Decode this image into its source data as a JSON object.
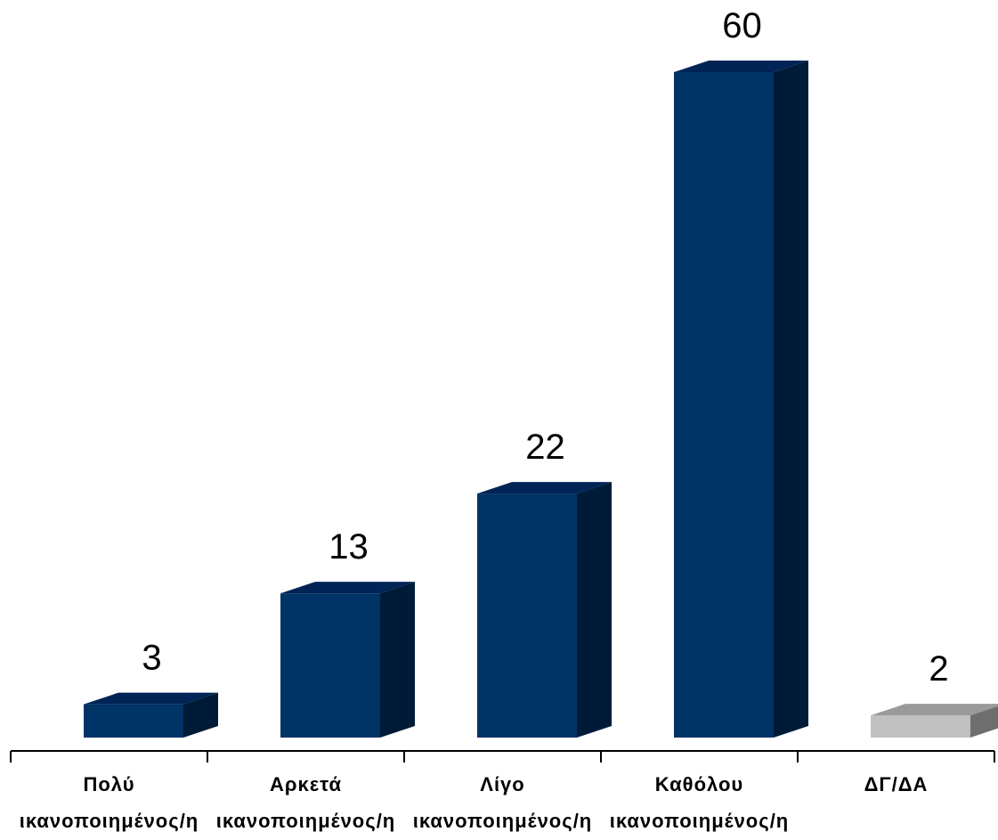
{
  "chart_data": {
    "type": "bar",
    "style": "3d-column",
    "categories": [
      [
        "Πολύ",
        "ικανοποιημένος/η"
      ],
      [
        "Αρκετά",
        "ικανοποιημένος/η"
      ],
      [
        "Λίγο",
        "ικανοποιημένος/η"
      ],
      [
        "Καθόλου",
        "ικανοποιημένος/η"
      ],
      [
        "ΔΓ/ΔΑ"
      ]
    ],
    "values": [
      3,
      13,
      22,
      60,
      2
    ],
    "value_labels": [
      "3",
      "13",
      "22",
      "60",
      "2"
    ],
    "colors": {
      "main_front": "#003366",
      "main_top": "#002455",
      "main_side": "#001b38",
      "na_front": "#c0c0c0",
      "na_top": "#9a9a9a",
      "na_side": "#6e6e6e",
      "axis": "#000000"
    },
    "na_category_index": 4,
    "title": "",
    "xlabel": "",
    "ylabel": "",
    "ylim": [
      0,
      60
    ],
    "grid": false,
    "legend": "none"
  }
}
